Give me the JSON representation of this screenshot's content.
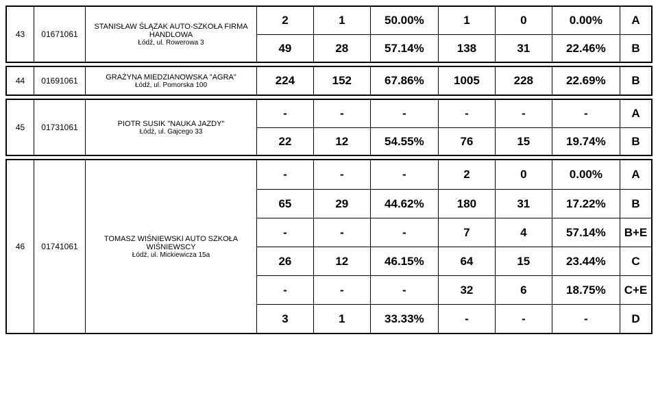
{
  "rows": [
    {
      "num": "43",
      "code": "01671061",
      "name": "STANISŁAW ŚLĄZAK AUTO-SZKOŁA FIRMA HANDLOWA",
      "addr": "Łódź, ul. Rowerowa 3",
      "lines": [
        {
          "c1": "2",
          "c2": "1",
          "c3": "50.00%",
          "c4": "1",
          "c5": "0",
          "c6": "0.00%",
          "cat": "A"
        },
        {
          "c1": "49",
          "c2": "28",
          "c3": "57.14%",
          "c4": "138",
          "c5": "31",
          "c6": "22.46%",
          "cat": "B"
        }
      ]
    },
    {
      "num": "44",
      "code": "01691061",
      "name": "GRAŻYNA MIEDZIANOWSKA \"AGRA\"",
      "addr": "Łódź, ul. Pomorska 100",
      "lines": [
        {
          "c1": "224",
          "c2": "152",
          "c3": "67.86%",
          "c4": "1005",
          "c5": "228",
          "c6": "22.69%",
          "cat": "B"
        }
      ]
    },
    {
      "num": "45",
      "code": "01731061",
      "name": "PIOTR SUSIK \"NAUKA JAZDY\"",
      "addr": "Łódź, ul. Gajcego 33",
      "lines": [
        {
          "c1": "-",
          "c2": "-",
          "c3": "-",
          "c4": "-",
          "c5": "-",
          "c6": "-",
          "cat": "A"
        },
        {
          "c1": "22",
          "c2": "12",
          "c3": "54.55%",
          "c4": "76",
          "c5": "15",
          "c6": "19.74%",
          "cat": "B"
        }
      ]
    },
    {
      "num": "46",
      "code": "01741061",
      "name": "TOMASZ WIŚNIEWSKI AUTO SZKOŁA WIŚNIEWSCY",
      "addr": "Łódź, ul. Mickiewicza 15a",
      "lines": [
        {
          "c1": "-",
          "c2": "-",
          "c3": "-",
          "c4": "2",
          "c5": "0",
          "c6": "0.00%",
          "cat": "A"
        },
        {
          "c1": "65",
          "c2": "29",
          "c3": "44.62%",
          "c4": "180",
          "c5": "31",
          "c6": "17.22%",
          "cat": "B"
        },
        {
          "c1": "-",
          "c2": "-",
          "c3": "-",
          "c4": "7",
          "c5": "4",
          "c6": "57.14%",
          "cat": "B+E"
        },
        {
          "c1": "26",
          "c2": "12",
          "c3": "46.15%",
          "c4": "64",
          "c5": "15",
          "c6": "23.44%",
          "cat": "C"
        },
        {
          "c1": "-",
          "c2": "-",
          "c3": "-",
          "c4": "32",
          "c5": "6",
          "c6": "18.75%",
          "cat": "C+E"
        },
        {
          "c1": "3",
          "c2": "1",
          "c3": "33.33%",
          "c4": "-",
          "c5": "-",
          "c6": "-",
          "cat": "D"
        }
      ]
    }
  ],
  "style": {
    "background": "#ffffff",
    "border_color": "#000000",
    "font_family": "Arial",
    "num_fontsize": 12,
    "desc_fontsize": 11,
    "cell_fontsize": 17,
    "cell_fontweight": "bold"
  }
}
